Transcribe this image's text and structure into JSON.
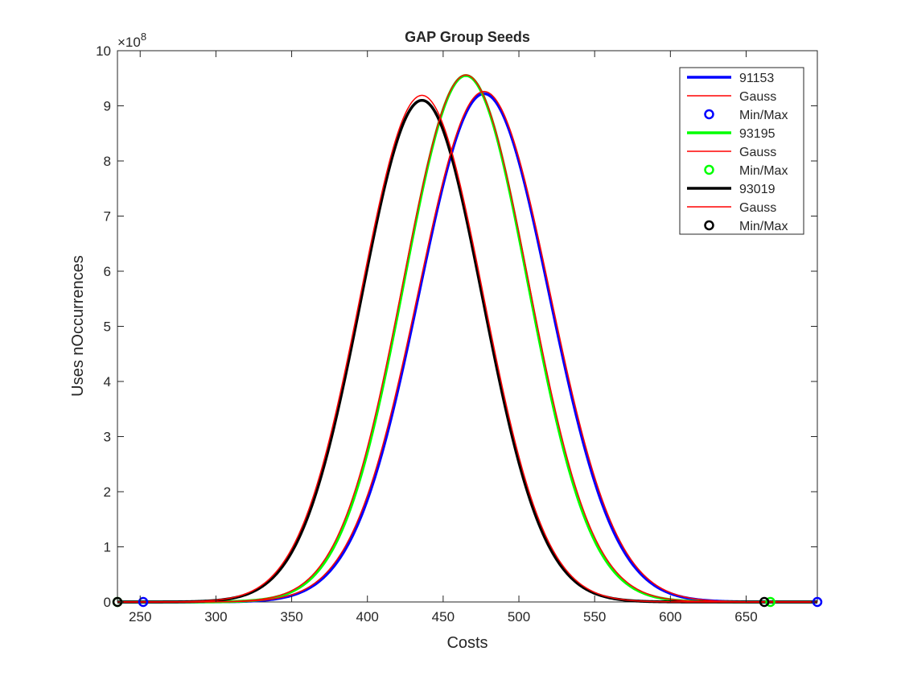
{
  "chart_data": {
    "type": "line",
    "title": "GAP Group Seeds",
    "xlabel": "Costs",
    "ylabel": "Uses nOccurrences",
    "y_exponent_label": "×10",
    "y_exponent_power": "8",
    "xlim": [
      235,
      697
    ],
    "ylim": [
      0,
      10
    ],
    "y_scale_multiplier": 100000000,
    "x_ticks": [
      250,
      300,
      350,
      400,
      450,
      500,
      550,
      600,
      650
    ],
    "y_ticks": [
      0,
      1,
      2,
      3,
      4,
      5,
      6,
      7,
      8,
      9,
      10
    ],
    "grid": false,
    "legend_position": "top-right",
    "series": [
      {
        "name": "91153",
        "color": "#0000ff",
        "gauss_label": "Gauss",
        "minmax_label": "Min/Max",
        "peak_x": 477,
        "peak_y": 9.22,
        "sigma": 43,
        "gauss_peak_y": 9.26,
        "gauss_sigma": 43.5,
        "min_x": 252,
        "max_x": 697
      },
      {
        "name": "93195",
        "color": "#00ff00",
        "gauss_label": "Gauss",
        "minmax_label": "Min/Max",
        "peak_x": 465,
        "peak_y": 9.55,
        "sigma": 41,
        "gauss_peak_y": 9.56,
        "gauss_sigma": 41.5,
        "min_x": 235,
        "max_x": 666
      },
      {
        "name": "93019",
        "color": "#000000",
        "gauss_label": "Gauss",
        "minmax_label": "Min/Max",
        "peak_x": 436,
        "peak_y": 9.1,
        "sigma": 40,
        "gauss_peak_y": 9.19,
        "gauss_sigma": 40.5,
        "min_x": 235,
        "max_x": 662
      }
    ],
    "gauss_color": "#ff0000"
  }
}
